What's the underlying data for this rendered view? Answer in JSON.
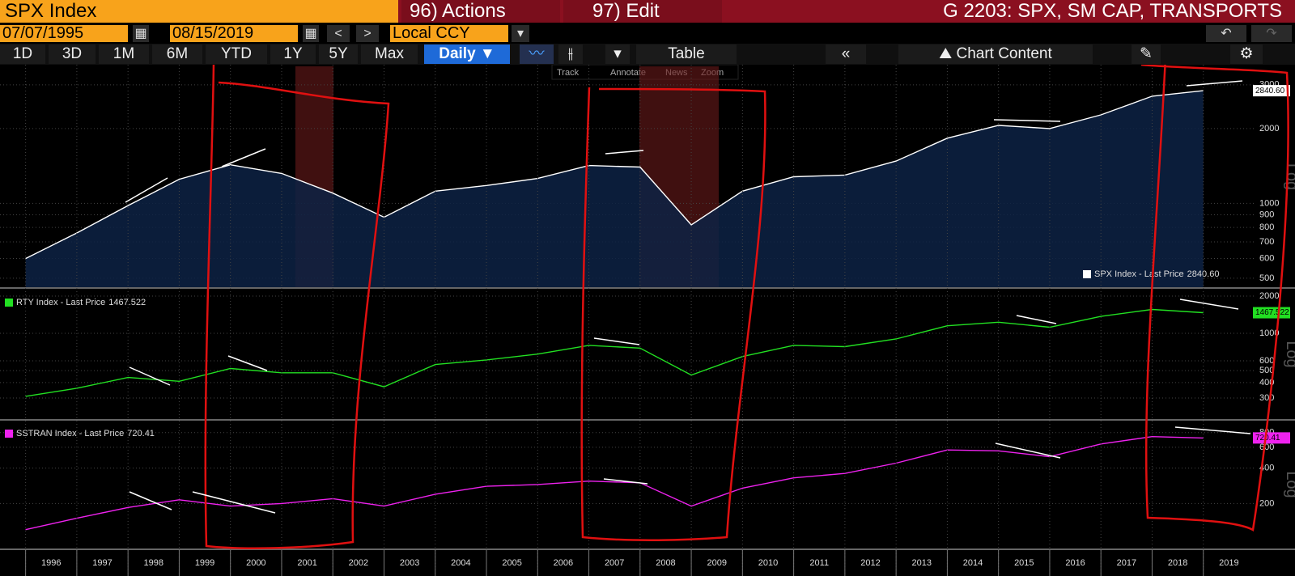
{
  "header": {
    "security": "SPX Index",
    "actions": "96) Actions",
    "edit": "97) Edit",
    "title": "G 2203: SPX, SM CAP, TRANSPORTS"
  },
  "toolbar": {
    "start_date": "07/07/1995",
    "end_date": "08/15/2019",
    "currency": "Local CCY",
    "periods": [
      "1D",
      "3D",
      "1M",
      "6M",
      "YTD",
      "1Y",
      "5Y",
      "Max"
    ],
    "frequency": "Daily",
    "table": "Table",
    "chart_content": "Chart Content",
    "tools": [
      "Track",
      "Annotate",
      "News",
      "Zoom"
    ]
  },
  "chart_data": [
    {
      "type": "line",
      "log_scale": true,
      "axis_label": "Log",
      "grid": true,
      "x": [
        1996,
        1997,
        1998,
        1999,
        2000,
        2001,
        2002,
        2003,
        2004,
        2005,
        2006,
        2007,
        2008,
        2009,
        2010,
        2011,
        2012,
        2013,
        2014,
        2015,
        2016,
        2017,
        2018,
        2019
      ],
      "xlim": [
        1995.5,
        2020
      ],
      "series": [
        {
          "name": "SPX Index - Last Price",
          "color": "#ffffff",
          "fill": "#0d2244",
          "last_label": "2840.60",
          "values": [
            600,
            760,
            980,
            1250,
            1430,
            1320,
            1100,
            880,
            1120,
            1180,
            1260,
            1420,
            1400,
            820,
            1120,
            1280,
            1300,
            1480,
            1830,
            2060,
            2000,
            2270,
            2700,
            2840.6
          ]
        }
      ],
      "ylim": [
        460,
        3560
      ],
      "yticks": [
        500,
        600,
        700,
        800,
        900,
        1000,
        2000,
        3000
      ]
    },
    {
      "type": "line",
      "log_scale": true,
      "axis_label": "Log",
      "grid": true,
      "x": [
        1996,
        1997,
        1998,
        1999,
        2000,
        2001,
        2002,
        2003,
        2004,
        2005,
        2006,
        2007,
        2008,
        2009,
        2010,
        2011,
        2012,
        2013,
        2014,
        2015,
        2016,
        2017,
        2018,
        2019
      ],
      "xlim": [
        1995.5,
        2020
      ],
      "series": [
        {
          "name": "RTY Index - Last Price",
          "color": "#22e022",
          "values": [
            310,
            360,
            440,
            410,
            520,
            480,
            480,
            370,
            560,
            610,
            680,
            800,
            760,
            460,
            650,
            800,
            780,
            900,
            1150,
            1230,
            1120,
            1370,
            1560,
            1467.522
          ]
        }
      ],
      "ylim": [
        203,
        2255
      ],
      "yticks": [
        300,
        400,
        500,
        600,
        1000,
        2000
      ]
    },
    {
      "type": "line",
      "log_scale": true,
      "axis_label": "Log",
      "grid": true,
      "x": [
        1996,
        1997,
        1998,
        1999,
        2000,
        2001,
        2002,
        2003,
        2004,
        2005,
        2006,
        2007,
        2008,
        2009,
        2010,
        2011,
        2012,
        2013,
        2014,
        2015,
        2016,
        2017,
        2018,
        2019
      ],
      "xlim": [
        1995.5,
        2020
      ],
      "series": [
        {
          "name": "SSTRAN Index - Last Price",
          "color": "#ee22ee",
          "values": [
            120,
            150,
            185,
            215,
            190,
            200,
            220,
            190,
            240,
            280,
            290,
            310,
            300,
            190,
            270,
            330,
            360,
            440,
            570,
            560,
            500,
            640,
            740,
            720.41
          ]
        }
      ],
      "ylim": [
        83,
        1010
      ],
      "yticks": [
        200,
        400,
        600,
        800
      ],
      "xticks": [
        1996,
        1997,
        1998,
        1999,
        2000,
        2001,
        2002,
        2003,
        2004,
        2005,
        2006,
        2007,
        2008,
        2009,
        2010,
        2011,
        2012,
        2013,
        2014,
        2015,
        2016,
        2017,
        2018,
        2019
      ]
    }
  ]
}
